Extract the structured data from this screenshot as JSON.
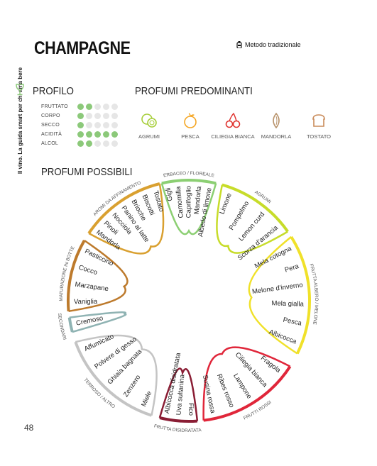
{
  "title": "CHAMPAGNE",
  "method": "Metodo tradizionale",
  "side_text": "Il vino. La guida smart per chi ama bere",
  "page_number": "48",
  "profile": {
    "title": "PROFILO",
    "rows": [
      {
        "label": "FRUTTATO",
        "level": 2,
        "max": 5
      },
      {
        "label": "CORPO",
        "level": 1,
        "max": 5
      },
      {
        "label": "SECCO",
        "level": 1,
        "max": 5
      },
      {
        "label": "ACIDITÀ",
        "level": 5,
        "max": 5
      },
      {
        "label": "ALCOL",
        "level": 2,
        "max": 5
      }
    ]
  },
  "predominant": {
    "title": "PROFUMI PREDOMINANTI",
    "items": [
      {
        "icon": "citrus-icon",
        "label": "AGRUMI",
        "color": "#a6ce39"
      },
      {
        "icon": "peach-icon",
        "label": "PESCA",
        "color": "#f5a623"
      },
      {
        "icon": "cherry-icon",
        "label": "CILIEGIA BIANCA",
        "color": "#e0322e"
      },
      {
        "icon": "almond-icon",
        "label": "MANDORLA",
        "color": "#b8926a"
      },
      {
        "icon": "toast-icon",
        "label": "TOSTATO",
        "color": "#c98b5a"
      }
    ]
  },
  "possible": {
    "title": "PROFUMI POSSIBILI",
    "categories": [
      {
        "name": "ERBACEO / FLOREALE",
        "color": "#8ccf73",
        "items": [
          "Gigli",
          "Camomilla",
          "Caprifoglio",
          "Mandorla",
          "Albedo di limone"
        ]
      },
      {
        "name": "AGRUMI",
        "color": "#c7dc2a",
        "items": [
          "Limone",
          "Pompelmo",
          "Lemon curd",
          "Scorza d'arancia"
        ]
      },
      {
        "name": "FRUTTA ALBERO / MELONE",
        "color": "#f0e12a",
        "items": [
          "Mela cotogna",
          "Pera",
          "Melone d'inverno",
          "Mela gialla",
          "Pesca",
          "Albicocca"
        ]
      },
      {
        "name": "FRUTTI ROSSI",
        "color": "#e0263a",
        "items": [
          "Fragola",
          "Ciliegia bianca",
          "Lampone",
          "Ribes rosso",
          "Susina rossa"
        ]
      },
      {
        "name": "FRUTTA DISIDRATATA",
        "color": "#8a1d34",
        "items": [
          "Fico",
          "Uva sultanina",
          "Albicocca disidratata"
        ]
      },
      {
        "name": "TERROSO / ALTRO",
        "color": "#c4c4c4",
        "items": [
          "Miele",
          "Zenzero",
          "Ghiaia bagnata",
          "Polvere di gesso",
          "Affumicato"
        ]
      },
      {
        "name": "SECONDARI",
        "color": "#8fb3b3",
        "items": [
          "Cremoso"
        ]
      },
      {
        "name": "MATURAZIONE IN BOTTE",
        "color": "#bd7a2c",
        "items": [
          "Vaniglia",
          "Marzapane",
          "Cocco",
          "Pasticcino"
        ]
      },
      {
        "name": "AROMI DA AFFINAMENTO",
        "color": "#d9a030",
        "items": [
          "Mandorla",
          "Pinoli",
          "Nocciola",
          "Panino al latte",
          "Brioche",
          "Biscotti",
          "Tostato"
        ]
      }
    ]
  }
}
